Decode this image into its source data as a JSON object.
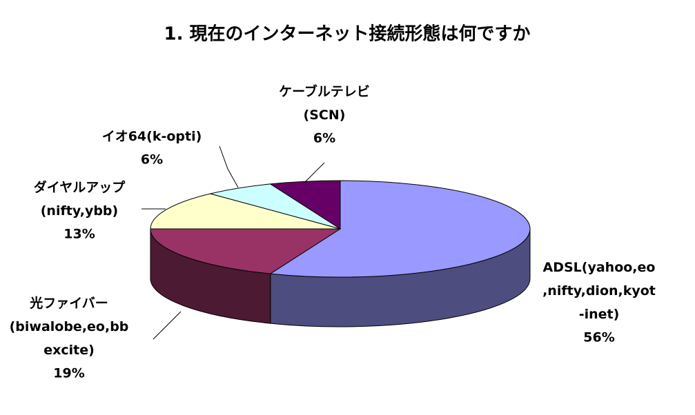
{
  "chart_data": {
    "type": "pie",
    "title": "1. 現在のインターネット接続形態は何ですか",
    "categories": [
      "ADSL(yahoo,eo\n,nifty,dion,kyot\n-inet)",
      "光ファイバー\n(biwalobe,eo,bb\nexcite)",
      "ダイヤルアップ\n(nifty,ybb)",
      "イオ64(k-opti)",
      "ケーブルテレビ\n(SCN)"
    ],
    "values": [
      56,
      19,
      13,
      6,
      6
    ],
    "value_labels": [
      "56%",
      "19%",
      "13%",
      "6%",
      "6%"
    ],
    "colors": [
      "#9999ff",
      "#993366",
      "#ffffcc",
      "#ccffff",
      "#660066"
    ]
  }
}
